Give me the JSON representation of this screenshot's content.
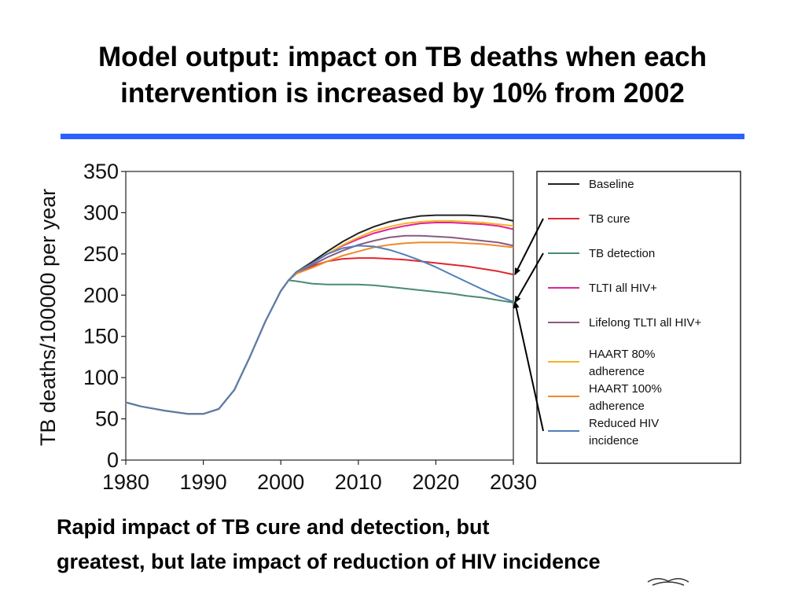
{
  "slide": {
    "title_line1": "Model output: impact on TB deaths when each",
    "title_line2": "intervention is increased by 10% from 2002",
    "caption_line1": "Rapid impact of TB cure and detection, but",
    "caption_line2": "greatest, but late impact of reduction of HIV incidence",
    "accent_color": "#2962ff"
  },
  "chart_data": {
    "type": "line",
    "title": "",
    "xlabel": "",
    "ylabel": "TB deaths/100000 per year",
    "xlim": [
      1980,
      2030
    ],
    "ylim": [
      0,
      350
    ],
    "x_ticks": [
      "1980",
      "1990",
      "2000",
      "2010",
      "2020",
      "2030"
    ],
    "y_ticks": [
      "0",
      "50",
      "100",
      "150",
      "200",
      "250",
      "300",
      "350"
    ],
    "grid": false,
    "legend_position": "right",
    "x": [
      1980,
      1982,
      1985,
      1988,
      1990,
      1992,
      1994,
      1996,
      1998,
      2000,
      2001,
      2002,
      2004,
      2006,
      2008,
      2010,
      2012,
      2014,
      2016,
      2018,
      2020,
      2022,
      2024,
      2026,
      2028,
      2030
    ],
    "series": [
      {
        "name": "Baseline",
        "color": "#222222",
        "values": [
          70,
          65,
          60,
          56,
          56,
          62,
          85,
          125,
          168,
          205,
          218,
          228,
          240,
          253,
          265,
          275,
          283,
          289,
          293,
          296,
          297,
          297,
          297,
          296,
          294,
          290
        ]
      },
      {
        "name": "TB cure",
        "color": "#e0282e",
        "values": [
          70,
          65,
          60,
          56,
          56,
          62,
          85,
          125,
          168,
          205,
          218,
          226,
          235,
          241,
          244,
          245,
          245,
          244,
          243,
          241,
          239,
          237,
          235,
          232,
          229,
          225
        ]
      },
      {
        "name": "TB detection",
        "color": "#4a8a72",
        "values": [
          70,
          65,
          60,
          56,
          56,
          62,
          85,
          125,
          168,
          205,
          218,
          217,
          214,
          213,
          213,
          213,
          212,
          210,
          208,
          206,
          204,
          202,
          199,
          197,
          194,
          191
        ]
      },
      {
        "name": "TLTI all HIV+",
        "color": "#e0249a",
        "values": [
          70,
          65,
          60,
          56,
          56,
          62,
          85,
          125,
          168,
          205,
          218,
          228,
          238,
          250,
          260,
          268,
          275,
          280,
          284,
          287,
          288,
          288,
          287,
          286,
          284,
          280
        ]
      },
      {
        "name": "Lifelong TLTI all HIV+",
        "color": "#8a5a82",
        "values": [
          70,
          65,
          60,
          56,
          56,
          62,
          85,
          125,
          168,
          205,
          218,
          226,
          236,
          246,
          254,
          261,
          266,
          270,
          272,
          272,
          271,
          270,
          268,
          266,
          264,
          260
        ]
      },
      {
        "name": "HAART 80% adherence",
        "color": "#f5b324",
        "values": [
          70,
          65,
          60,
          56,
          56,
          62,
          85,
          125,
          168,
          205,
          218,
          228,
          238,
          250,
          261,
          270,
          278,
          283,
          287,
          289,
          290,
          290,
          289,
          288,
          286,
          284
        ]
      },
      {
        "name": "HAART 100% adherence",
        "color": "#f08a2a",
        "values": [
          70,
          65,
          60,
          56,
          56,
          62,
          85,
          125,
          168,
          205,
          218,
          226,
          233,
          241,
          248,
          253,
          258,
          261,
          263,
          264,
          264,
          264,
          263,
          262,
          260,
          258
        ]
      },
      {
        "name": "Reduced HIV incidence",
        "color": "#4f7fb8",
        "values": [
          70,
          65,
          60,
          56,
          56,
          62,
          85,
          125,
          168,
          205,
          218,
          228,
          238,
          250,
          257,
          260,
          259,
          255,
          249,
          242,
          234,
          225,
          216,
          207,
          199,
          192
        ]
      }
    ],
    "legend_labels": [
      [
        "Baseline"
      ],
      [
        "TB cure"
      ],
      [
        "TB detection"
      ],
      [
        "TLTI all HIV+"
      ],
      [
        "Lifelong TLTI all HIV+"
      ],
      [
        "HAART 80%",
        "adherence"
      ],
      [
        "HAART 100%",
        "adherence"
      ],
      [
        "Reduced HIV",
        "incidence"
      ]
    ],
    "annotations": [
      {
        "type": "arrow",
        "from_legend": "TB cure",
        "to_series": "TB cure",
        "at_x": 2030
      },
      {
        "type": "arrow",
        "from_legend": "TB detection",
        "to_series": "TB detection",
        "at_x": 2030
      },
      {
        "type": "arrow",
        "from_legend": "Reduced HIV incidence",
        "to_series": "Reduced HIV incidence",
        "at_x": 2030
      }
    ]
  }
}
